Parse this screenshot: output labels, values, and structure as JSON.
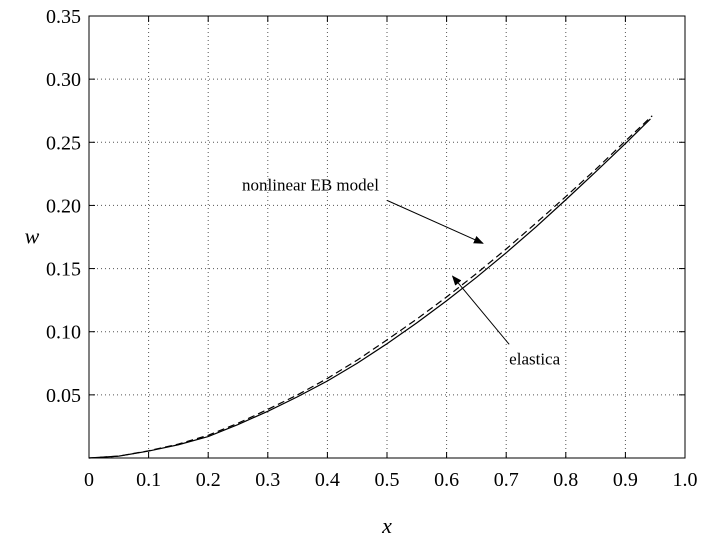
{
  "chart_data": {
    "type": "line",
    "title": "",
    "xlabel": "x",
    "ylabel": "w",
    "xlim": [
      0,
      1.0
    ],
    "ylim": [
      0,
      0.35
    ],
    "grid": true,
    "xticks": [
      "0",
      "0.1",
      "0.2",
      "0.3",
      "0.4",
      "0.5",
      "0.6",
      "0.7",
      "0.8",
      "0.9",
      "1.0"
    ],
    "yticks": [
      "0.05",
      "0.10",
      "0.15",
      "0.20",
      "0.25",
      "0.30",
      "0.35"
    ],
    "series": [
      {
        "style": "solid",
        "x": [
          0,
          0.05,
          0.1,
          0.15,
          0.2,
          0.25,
          0.3,
          0.35,
          0.4,
          0.45,
          0.5,
          0.55,
          0.6,
          0.65,
          0.7,
          0.75,
          0.8,
          0.85,
          0.9,
          0.942
        ],
        "y": [
          0,
          0.0015,
          0.0055,
          0.0105,
          0.017,
          0.0265,
          0.037,
          0.0485,
          0.061,
          0.075,
          0.0905,
          0.107,
          0.1245,
          0.143,
          0.1625,
          0.183,
          0.2045,
          0.2265,
          0.249,
          0.2685
        ]
      },
      {
        "style": "dashed",
        "x": [
          0,
          0.05,
          0.1,
          0.15,
          0.2,
          0.25,
          0.3,
          0.35,
          0.4,
          0.45,
          0.5,
          0.55,
          0.6,
          0.65,
          0.7,
          0.75,
          0.8,
          0.85,
          0.9,
          0.945
        ],
        "y": [
          0,
          0.0015,
          0.0057,
          0.011,
          0.018,
          0.0275,
          0.0385,
          0.05,
          0.063,
          0.0775,
          0.0935,
          0.11,
          0.1275,
          0.146,
          0.1655,
          0.186,
          0.207,
          0.2285,
          0.251,
          0.271
        ]
      }
    ],
    "annotations": [
      {
        "text": "nonlinear EB model",
        "target": [
          0.661,
          0.17
        ],
        "label_anchor": [
          0.5,
          0.204
        ]
      },
      {
        "text": "elastica",
        "target": [
          0.61,
          0.144
        ],
        "label_anchor": [
          0.705,
          0.09
        ]
      }
    ]
  }
}
